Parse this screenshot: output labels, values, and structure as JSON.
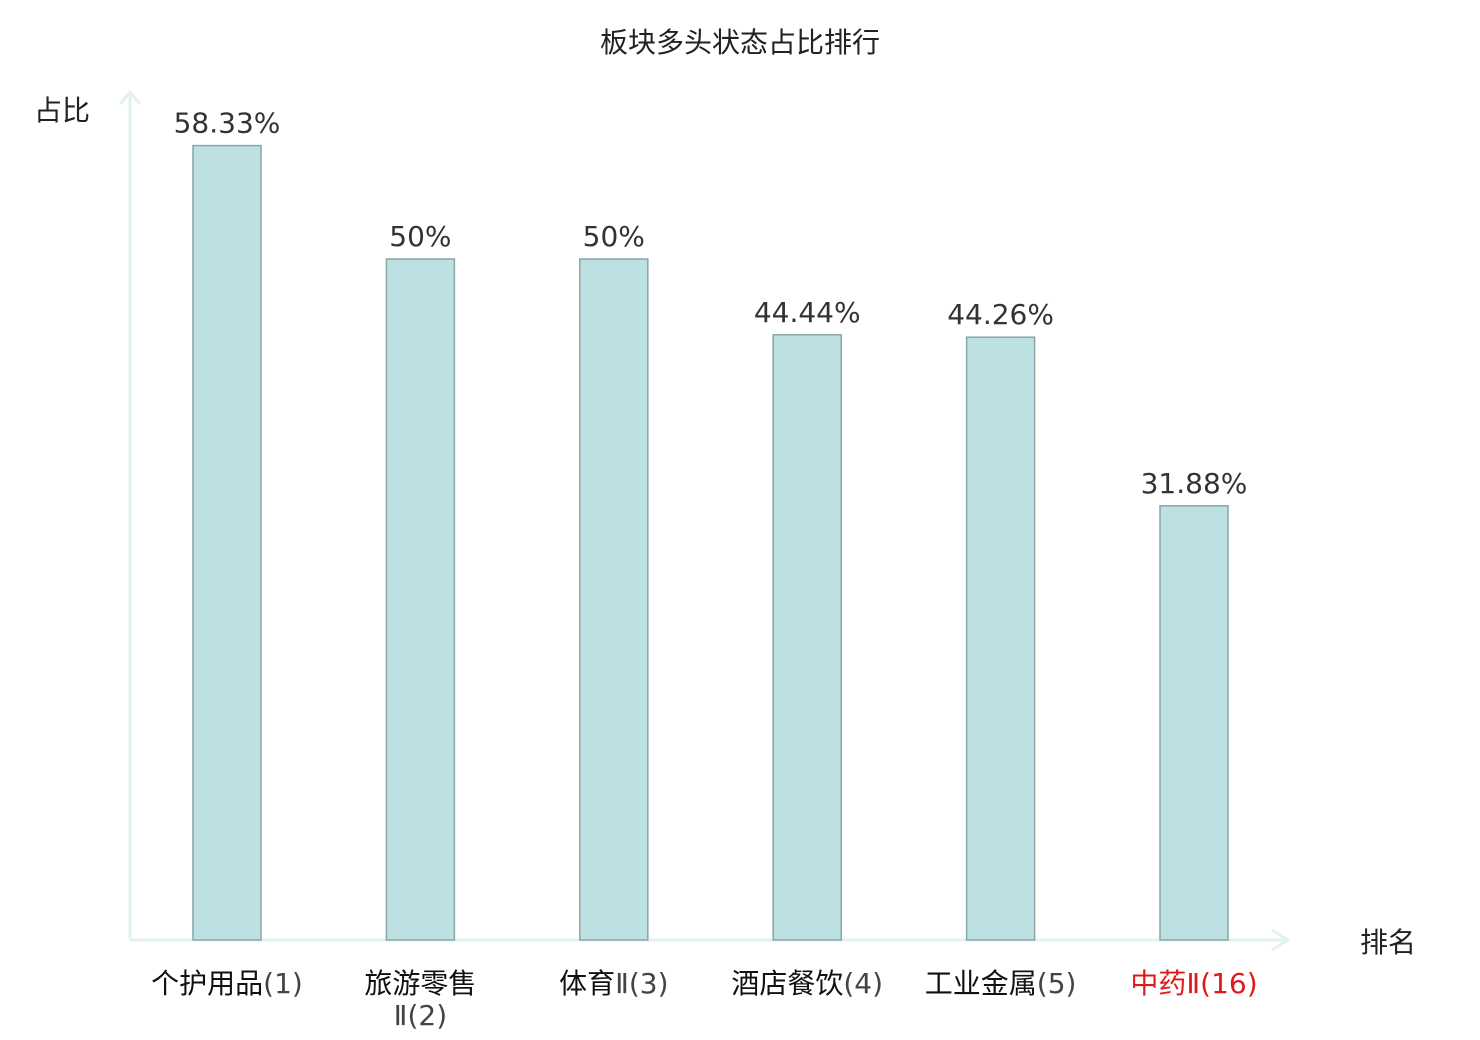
{
  "chart_data": {
    "type": "bar",
    "title": "板块多头状态占比排行",
    "xlabel": "排名",
    "ylabel": "占比",
    "ylim": [
      0,
      63
    ],
    "grid": false,
    "categories": [
      {
        "lines": [
          {
            "name": "个护用品",
            "rank": "(1)"
          }
        ],
        "highlight": false
      },
      {
        "lines": [
          {
            "name": "旅游零售",
            "rank": ""
          },
          {
            "name": "",
            "rank": "Ⅱ(2)"
          }
        ],
        "highlight": false
      },
      {
        "lines": [
          {
            "name": "体育",
            "rank": "Ⅱ(3)"
          }
        ],
        "highlight": false
      },
      {
        "lines": [
          {
            "name": "酒店餐饮",
            "rank": "(4)"
          }
        ],
        "highlight": false
      },
      {
        "lines": [
          {
            "name": "工业金属",
            "rank": "(5)"
          }
        ],
        "highlight": false
      },
      {
        "lines": [
          {
            "name": "中药",
            "rank": "Ⅱ(16)"
          }
        ],
        "highlight": true
      }
    ],
    "values": [
      58.33,
      50,
      50,
      44.44,
      44.26,
      31.88
    ],
    "value_labels": [
      "58.33%",
      "50%",
      "50%",
      "44.44%",
      "44.26%",
      "31.88%"
    ],
    "colors": {
      "bar_fill": "#bde0e2",
      "bar_stroke": "#8aa6a8",
      "axis": "#e0f2f1",
      "text": "#222222",
      "highlight_text": "#e0191c"
    }
  }
}
